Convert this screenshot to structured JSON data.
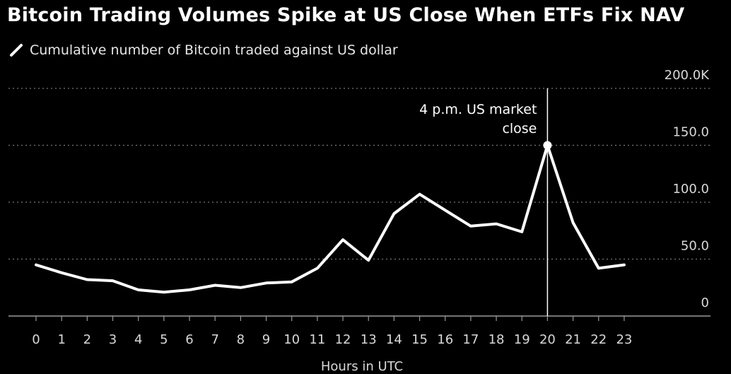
{
  "chart_data": {
    "type": "line",
    "title": "Bitcoin Trading Volumes Spike at US Close When ETFs Fix NAV",
    "xlabel": "Hours in UTC",
    "ylabel": "",
    "x": [
      0,
      1,
      2,
      3,
      4,
      5,
      6,
      7,
      8,
      9,
      10,
      11,
      12,
      13,
      14,
      15,
      16,
      17,
      18,
      19,
      20,
      21,
      22,
      23
    ],
    "series": [
      {
        "name": "Cumulative number of Bitcoin traded against US dollar",
        "color": "#ffffff",
        "values": [
          45,
          38,
          32,
          31,
          23,
          21,
          23,
          27,
          25,
          29,
          30,
          42,
          67,
          49,
          90,
          107,
          93,
          79,
          81,
          74,
          150,
          82,
          42,
          45
        ]
      }
    ],
    "ylim": [
      0,
      200
    ],
    "yticks": [
      0,
      50,
      100,
      150,
      200
    ],
    "ytick_labels": [
      "0",
      "50.0",
      "100.0",
      "150.0",
      "200.0K"
    ],
    "grid": true,
    "annotation": {
      "x": 20,
      "y": 150,
      "lines": [
        "4 p.m. US market",
        "close"
      ]
    }
  }
}
